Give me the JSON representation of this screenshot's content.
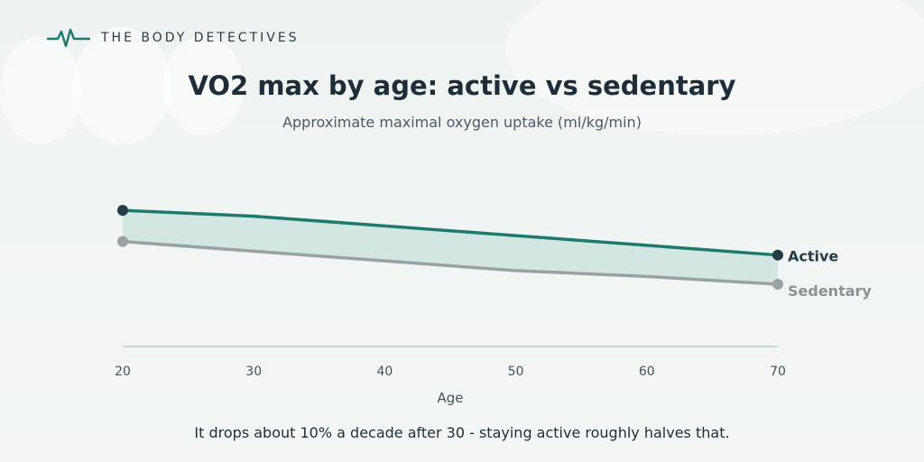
{
  "brand": {
    "name": "THE BODY DETECTIVES",
    "icon": "heartbeat-pulse-icon"
  },
  "colors": {
    "active": "#1f7a6e",
    "active_marker": "#243d45",
    "sedentary": "#9aa1a3",
    "band_fill": "#d3e6e2",
    "axis": "#c9d8d4"
  },
  "footnote": "It drops about 10% a decade after 30 - staying active roughly halves that.",
  "chart_data": {
    "type": "line",
    "title": "VO2 max by age: active vs sedentary",
    "subtitle": "Approximate maximal oxygen uptake (ml/kg/min)",
    "xlabel": "Age",
    "ylabel": "",
    "x": [
      20,
      30,
      40,
      50,
      60,
      70
    ],
    "xlim": [
      20,
      70
    ],
    "ylim": [
      15,
      60
    ],
    "grid": false,
    "legend": "direct labels at line ends",
    "shaded_band_between_series": true,
    "series": [
      {
        "name": "Active",
        "values": [
          50,
          48.5,
          46,
          43.5,
          41,
          38.5
        ]
      },
      {
        "name": "Sedentary",
        "values": [
          42,
          39.5,
          37,
          34.5,
          33,
          31
        ]
      }
    ]
  }
}
